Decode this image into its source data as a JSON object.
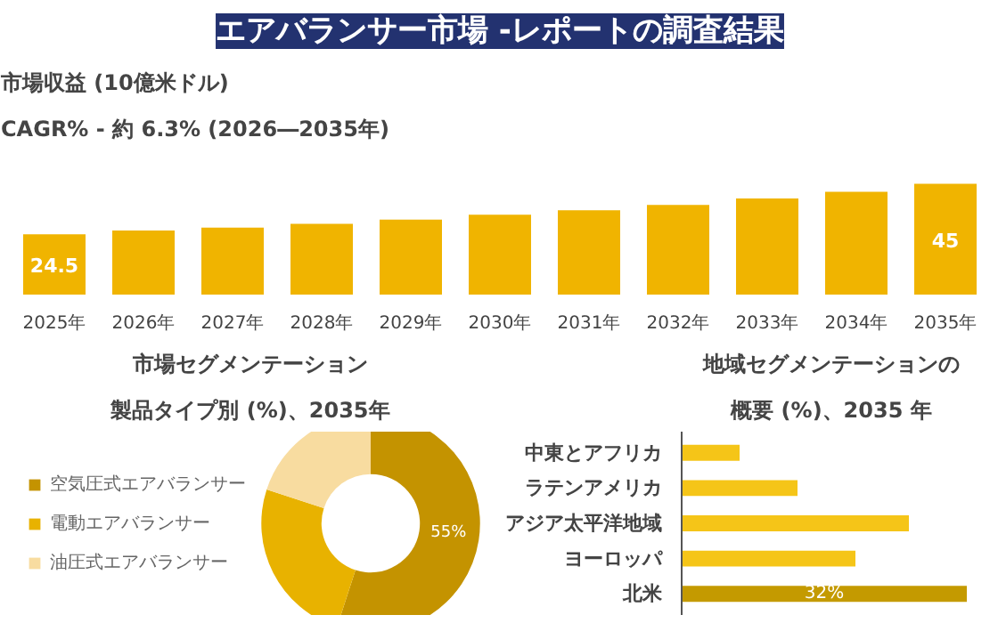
{
  "chart_data": [
    {
      "type": "bar",
      "title": "エアバランサー市場 -レポートの調査結果",
      "subtitle": "市場収益 (10億米ドル)",
      "annotations": [
        "CAGR% - 約 6.3% (2026―2035年)"
      ],
      "categories": [
        "2025年",
        "2026年",
        "2027年",
        "2028年",
        "2029年",
        "2030年",
        "2031年",
        "2032年",
        "2033年",
        "2034年",
        "2035年"
      ],
      "values": [
        24.5,
        26.0,
        27.2,
        28.7,
        30.4,
        32.4,
        34.2,
        36.4,
        39.0,
        41.7,
        45
      ],
      "value_labels": [
        "24.5",
        null,
        null,
        null,
        null,
        null,
        null,
        null,
        null,
        null,
        "45"
      ],
      "color": "#f0b400"
    },
    {
      "type": "donut",
      "title": "市場セグメンテーション",
      "subtitle": "製品タイプ別 (%)、2035年",
      "categories": [
        "空気圧式エアバランサー",
        "電動エアバランサー",
        "油圧式エアバランサー"
      ],
      "values": [
        55,
        25,
        20
      ],
      "colors": [
        "#c49300",
        "#e8b200",
        "#f8dca0"
      ],
      "value_labels": [
        "55%",
        null,
        null
      ],
      "legend": "left"
    },
    {
      "type": "bar",
      "orientation": "horizontal",
      "title": "地域セグメンテーションの",
      "subtitle": "概要 (%)、2035 年",
      "categories": [
        "中東とアフリカ",
        "ラテンアメリカ",
        "アジア太平洋地域",
        "ヨーロッパ",
        "北米"
      ],
      "values": [
        6.5,
        13,
        25.5,
        19.5,
        32
      ],
      "value_labels": [
        null,
        null,
        null,
        null,
        "32%"
      ],
      "colors": [
        "#f5c518",
        "#f5c518",
        "#f5c518",
        "#f5c518",
        "#c49a00"
      ]
    }
  ]
}
